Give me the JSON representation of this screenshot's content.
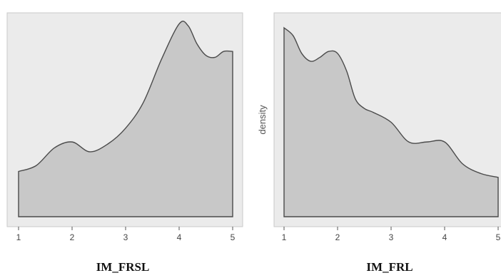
{
  "chart_data": [
    {
      "type": "area",
      "title": "IM_FRSL",
      "xlabel": "",
      "ylabel": "",
      "xlim": [
        1,
        5
      ],
      "xticks": [
        "1",
        "2",
        "3",
        "4",
        "5"
      ],
      "ylim": [
        0,
        1.0
      ],
      "grid": false,
      "x": [
        1.0,
        1.33,
        1.67,
        2.0,
        2.33,
        2.67,
        3.0,
        3.33,
        3.67,
        4.0,
        4.17,
        4.33,
        4.5,
        4.67,
        4.83,
        5.0
      ],
      "y": [
        0.23,
        0.26,
        0.35,
        0.38,
        0.33,
        0.37,
        0.45,
        0.58,
        0.8,
        0.98,
        0.97,
        0.88,
        0.82,
        0.81,
        0.84,
        0.84
      ]
    },
    {
      "type": "area",
      "title": "IM_FRL",
      "xlabel": "",
      "ylabel": "density",
      "xlim": [
        1,
        5
      ],
      "xticks": [
        "1",
        "2",
        "3",
        "4",
        "5"
      ],
      "ylim": [
        0,
        1.0
      ],
      "grid": false,
      "x": [
        1.0,
        1.17,
        1.33,
        1.5,
        1.67,
        1.83,
        2.0,
        2.17,
        2.33,
        2.5,
        2.67,
        3.0,
        3.33,
        3.67,
        4.0,
        4.33,
        4.67,
        5.0
      ],
      "y": [
        0.96,
        0.92,
        0.83,
        0.79,
        0.81,
        0.84,
        0.83,
        0.74,
        0.6,
        0.55,
        0.53,
        0.48,
        0.38,
        0.38,
        0.38,
        0.27,
        0.22,
        0.2
      ]
    }
  ]
}
